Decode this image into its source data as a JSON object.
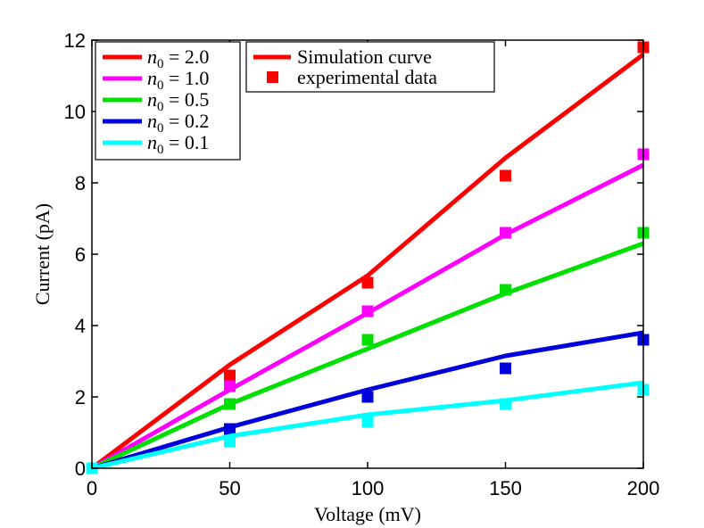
{
  "chart_data": {
    "type": "line",
    "xlabel": "Voltage (mV)",
    "ylabel": "Current (pA)",
    "xlim": [
      0,
      200
    ],
    "ylim": [
      0,
      12
    ],
    "xticks": [
      0,
      50,
      100,
      150,
      200
    ],
    "yticks": [
      0,
      2,
      4,
      6,
      8,
      10,
      12
    ],
    "x": [
      0,
      50,
      100,
      150,
      200
    ],
    "series": [
      {
        "name": "n_0 = 2.0",
        "math_var": "n",
        "math_sub": "0",
        "math_rest": " = 2.0",
        "color": "#ff0000",
        "simulation": [
          0,
          2.9,
          5.4,
          8.7,
          11.6
        ],
        "experimental": [
          0,
          2.6,
          5.2,
          8.2,
          11.8
        ]
      },
      {
        "name": "n_0 = 1.0",
        "math_var": "n",
        "math_sub": "0",
        "math_rest": " = 1.0",
        "color": "#ff00ff",
        "simulation": [
          0,
          2.2,
          4.35,
          6.55,
          8.5
        ],
        "experimental": [
          0,
          2.3,
          4.4,
          6.6,
          8.8
        ]
      },
      {
        "name": "n_0 = 0.5",
        "math_var": "n",
        "math_sub": "0",
        "math_rest": " = 0.5",
        "color": "#00e000",
        "simulation": [
          0,
          1.8,
          3.35,
          4.9,
          6.3
        ],
        "experimental": [
          0,
          1.8,
          3.6,
          5.0,
          6.6
        ]
      },
      {
        "name": "n_0 = 0.2",
        "math_var": "n",
        "math_sub": "0",
        "math_rest": " = 0.2",
        "color": "#0000dd",
        "simulation": [
          0,
          1.15,
          2.2,
          3.15,
          3.8
        ],
        "experimental": [
          0,
          1.1,
          2.0,
          2.8,
          3.6
        ]
      },
      {
        "name": "n_0 = 0.1",
        "math_var": "n",
        "math_sub": "0",
        "math_rest": " = 0.1",
        "color": "#00ffff",
        "simulation": [
          0,
          0.9,
          1.5,
          1.9,
          2.4
        ],
        "experimental": [
          0,
          0.75,
          1.3,
          1.8,
          2.2
        ]
      }
    ],
    "style_legend": {
      "simulation_label": "Simulation curve",
      "experimental_label": "experimental data",
      "color": "#ff0000"
    },
    "legend_position": "top-left",
    "grid": false
  }
}
